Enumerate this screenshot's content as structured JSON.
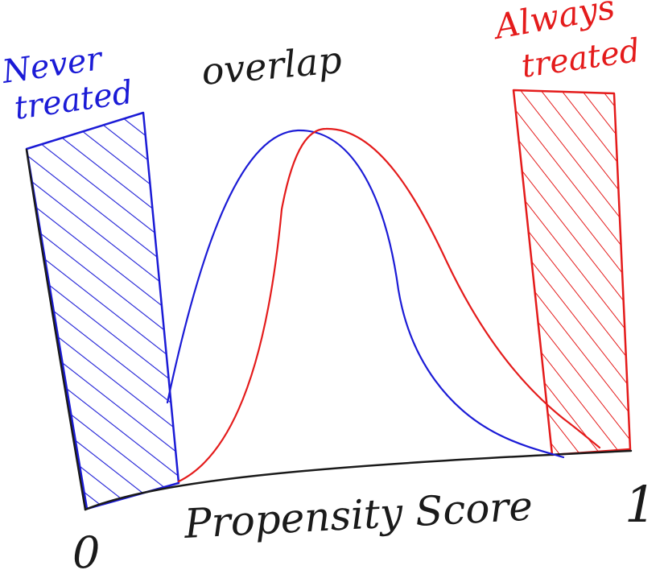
{
  "labels": {
    "never_treated": [
      "Never",
      "treated"
    ],
    "always_treated": [
      "Always",
      "treated"
    ],
    "overlap": "overlap",
    "x_axis": "Propensity Score",
    "x_min": "0",
    "x_max": "1"
  },
  "colors": {
    "ink": "#1a1a1a",
    "control": "#1b1bd6",
    "treated": "#e41b1b"
  },
  "curves": [
    {
      "group": "control",
      "color": "#1b1bd6",
      "shape": "bell",
      "peak_position": "left-of-center"
    },
    {
      "group": "treated",
      "color": "#e41b1b",
      "shape": "bell",
      "peak_position": "right-of-center"
    }
  ],
  "regions": [
    {
      "name": "never_treated",
      "color": "#1b1bd6",
      "fill": "hatched",
      "position": "left"
    },
    {
      "name": "always_treated",
      "color": "#e41b1b",
      "fill": "hatched",
      "position": "right"
    }
  ]
}
